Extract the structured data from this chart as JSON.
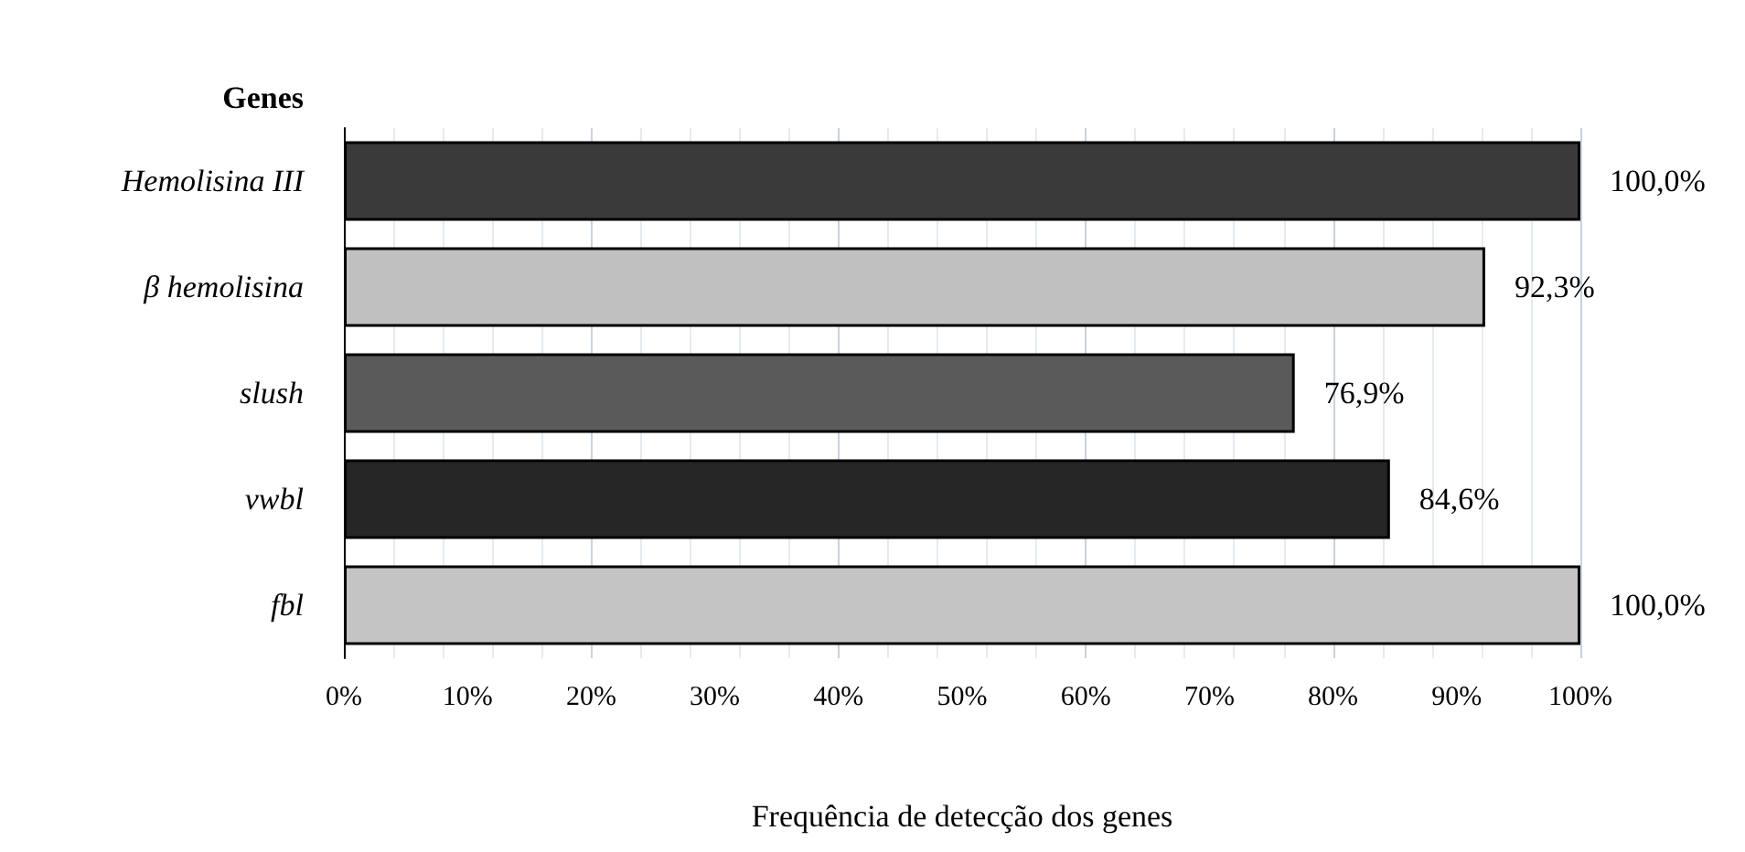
{
  "chart_data": {
    "type": "bar",
    "orientation": "horizontal",
    "ylabel": "Genes",
    "xlabel": "Frequência de detecção dos genes",
    "categories": [
      "Hemolisina III",
      "β hemolisina",
      "slush",
      "vwbl",
      "fbl"
    ],
    "values": [
      100,
      92.3,
      76.9,
      84.6,
      100
    ],
    "colors": [
      "#3a3a3a",
      "#c0c0c0",
      "#5a5a5a",
      "#262626",
      "#c4c4c4"
    ],
    "value_labels": [
      "100,0%",
      "92,3%",
      "76,9%",
      "84,6%",
      "100,0%"
    ],
    "xlim": [
      0,
      100
    ],
    "xticks": [
      {
        "value": 0,
        "label": "0%"
      },
      {
        "value": 10,
        "label": "10%"
      },
      {
        "value": 20,
        "label": "20%"
      },
      {
        "value": 30,
        "label": "30%"
      },
      {
        "value": 40,
        "label": "40%"
      },
      {
        "value": 50,
        "label": "50%"
      },
      {
        "value": 60,
        "label": "60%"
      },
      {
        "value": 70,
        "label": "70%"
      },
      {
        "value": 80,
        "label": "80%"
      },
      {
        "value": 90,
        "label": "90%"
      },
      {
        "value": 100,
        "label": "100%"
      }
    ],
    "grid": "x"
  }
}
